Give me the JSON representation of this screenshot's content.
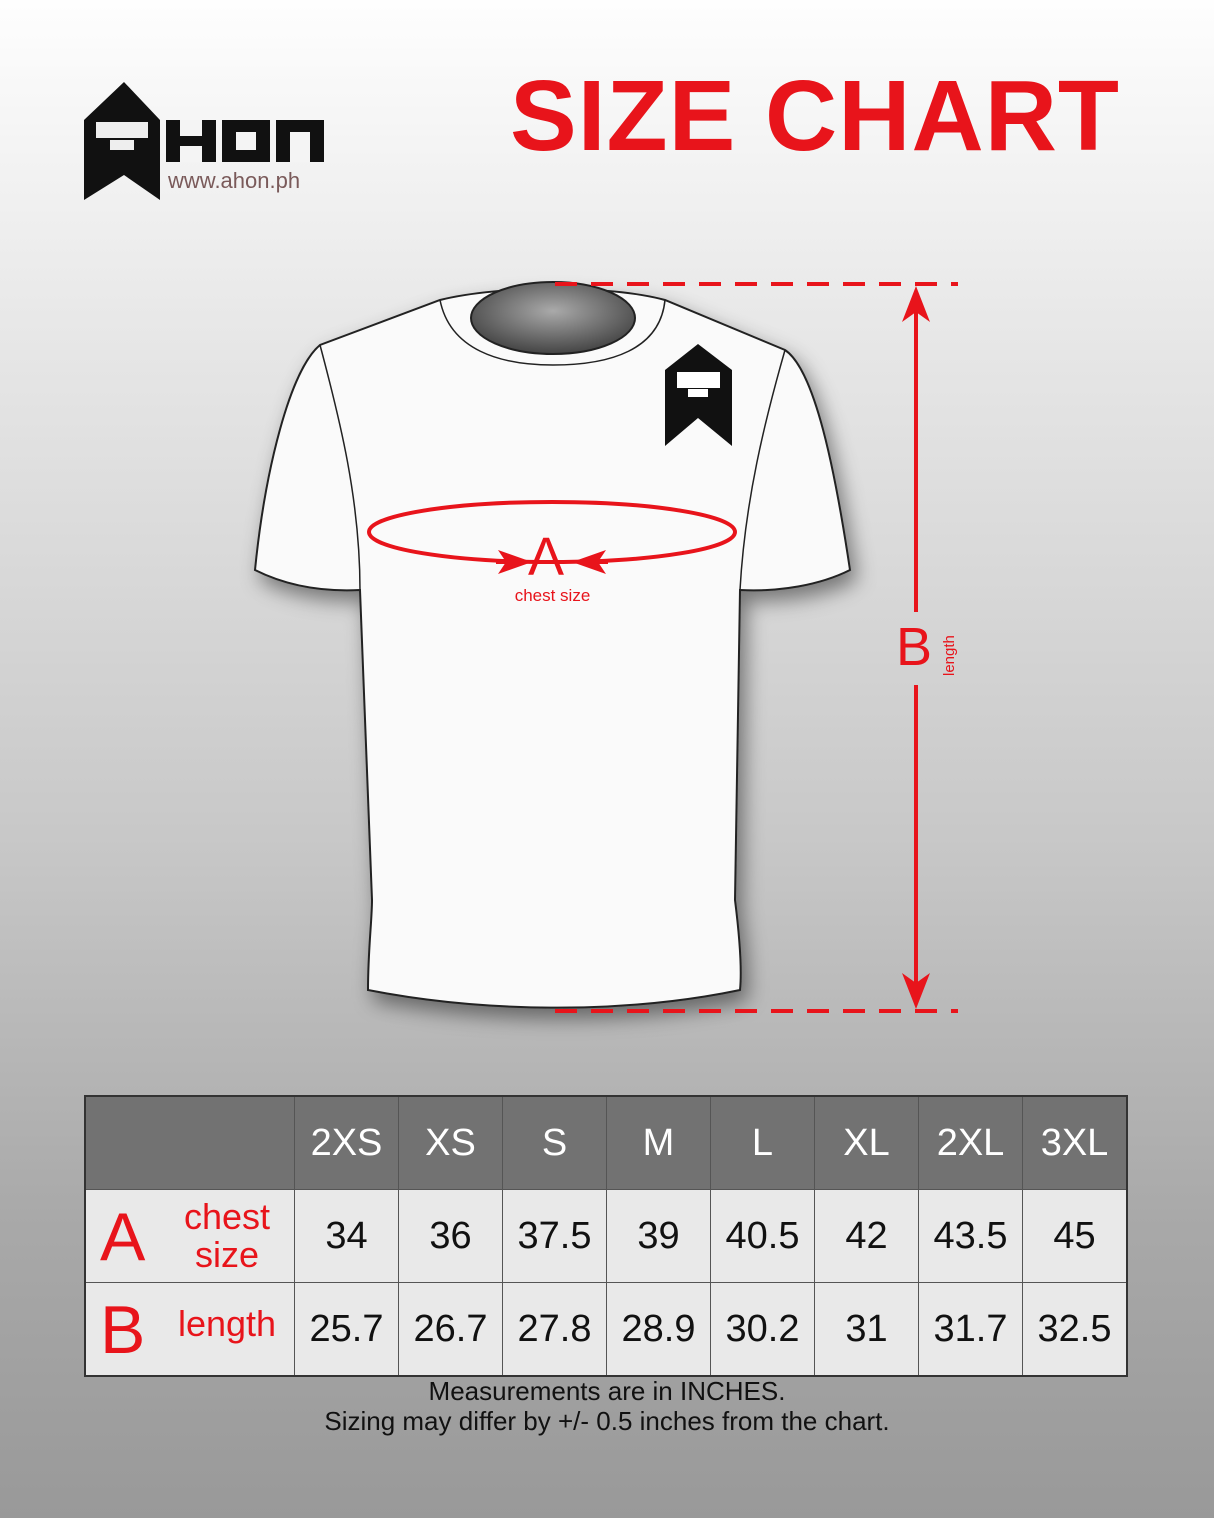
{
  "brand": {
    "url": "www.ahon.ph",
    "logo_text": "AHON"
  },
  "title": "SIZE CHART",
  "diagram": {
    "chest_letter": "A",
    "chest_label": "chest size",
    "length_letter": "B",
    "length_label": "length"
  },
  "colors": {
    "accent": "#e8141b",
    "header_bg": "#727272",
    "cell_bg": "#e9e9e9"
  },
  "table": {
    "sizes": [
      "2XS",
      "XS",
      "S",
      "M",
      "L",
      "XL",
      "2XL",
      "3XL"
    ],
    "rows": [
      {
        "letter": "A",
        "label_line1": "chest",
        "label_line2": "size",
        "values": [
          "34",
          "36",
          "37.5",
          "39",
          "40.5",
          "42",
          "43.5",
          "45"
        ]
      },
      {
        "letter": "B",
        "label_line1": "length",
        "label_line2": "",
        "values": [
          "25.7",
          "26.7",
          "27.8",
          "28.9",
          "30.2",
          "31",
          "31.7",
          "32.5"
        ]
      }
    ]
  },
  "notes": [
    "Measurements are in INCHES.",
    "Sizing may differ by +/- 0.5 inches from the chart."
  ]
}
